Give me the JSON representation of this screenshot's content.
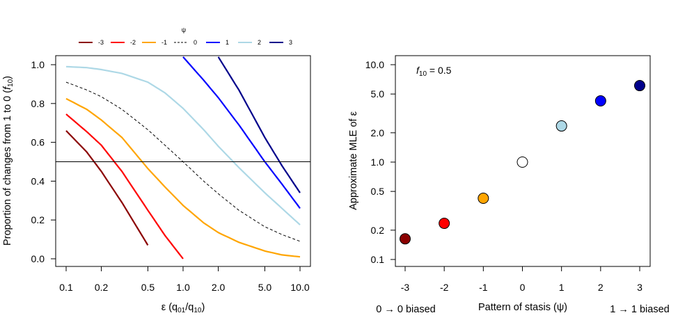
{
  "chart_data": [
    {
      "type": "line",
      "xlabel": "ε (q01/q10)",
      "ylabel": "Proportion of changes from 1 to 0 (f10)",
      "xscale": "log",
      "xlim": [
        0.1,
        10.0
      ],
      "ylim": [
        0.0,
        1.0
      ],
      "x_ticks": [
        0.1,
        0.2,
        0.5,
        1.0,
        2.0,
        5.0,
        10.0
      ],
      "x_tick_labels": [
        "0.1",
        "0.2",
        "0.5",
        "1.0",
        "2.0",
        "5.0",
        "10.0"
      ],
      "y_ticks": [
        0.0,
        0.2,
        0.4,
        0.6,
        0.8,
        1.0
      ],
      "y_tick_labels": [
        "0.0",
        "0.2",
        "0.4",
        "0.6",
        "0.8",
        "1.0"
      ],
      "grid": false,
      "legend_title": "ψ",
      "legend_position": "top",
      "reference_line": {
        "y": 0.5,
        "color": "#000000"
      },
      "x": [
        0.1,
        0.15,
        0.2,
        0.3,
        0.5,
        0.7,
        1.0,
        1.5,
        2.0,
        3.0,
        5.0,
        7.0,
        10.0
      ],
      "series": [
        {
          "name": "-3",
          "color": "#8B0000",
          "dash": "solid",
          "values": [
            0.66,
            0.55,
            0.45,
            0.29,
            0.07,
            null,
            null,
            null,
            null,
            null,
            null,
            null,
            null
          ]
        },
        {
          "name": "-2",
          "color": "#FF0000",
          "dash": "solid",
          "values": [
            0.745,
            0.655,
            0.585,
            0.45,
            0.25,
            0.12,
            0.0,
            null,
            null,
            null,
            null,
            null,
            null
          ]
        },
        {
          "name": "-1",
          "color": "#FFA500",
          "dash": "solid",
          "values": [
            0.825,
            0.77,
            0.715,
            0.625,
            0.465,
            0.37,
            0.275,
            0.185,
            0.135,
            0.085,
            0.04,
            0.02,
            0.01
          ]
        },
        {
          "name": "0",
          "color": "#000000",
          "dash": "dashed",
          "values": [
            0.91,
            0.87,
            0.835,
            0.77,
            0.665,
            0.585,
            0.5,
            0.4,
            0.335,
            0.25,
            0.165,
            0.125,
            0.09
          ]
        },
        {
          "name": "1",
          "color": "#0000FF",
          "dash": "solid",
          "values": [
            null,
            null,
            null,
            null,
            null,
            null,
            1.04,
            0.92,
            0.83,
            0.69,
            0.5,
            0.385,
            0.26
          ]
        },
        {
          "name": "2",
          "color": "#ADD8E6",
          "dash": "solid",
          "values": [
            0.99,
            0.985,
            0.975,
            0.955,
            0.91,
            0.855,
            0.775,
            0.665,
            0.58,
            0.47,
            0.34,
            0.26,
            0.175
          ]
        },
        {
          "name": "3",
          "color": "#00008B",
          "dash": "solid",
          "values": [
            null,
            null,
            null,
            null,
            null,
            null,
            null,
            null,
            1.04,
            0.87,
            0.625,
            0.48,
            0.34
          ]
        }
      ]
    },
    {
      "type": "scatter",
      "xlabel": "Pattern of stasis (ψ)",
      "ylabel": "Approximate MLE of ε",
      "yscale": "log",
      "xlim": [
        -3.25,
        3.25
      ],
      "ylim": [
        0.09,
        11.0
      ],
      "x_ticks": [
        -3,
        -2,
        -1,
        0,
        1,
        2,
        3
      ],
      "x_tick_labels": [
        "-3",
        "-2",
        "-1",
        "0",
        "1",
        "2",
        "3"
      ],
      "y_ticks": [
        0.1,
        0.2,
        0.5,
        1.0,
        2.0,
        5.0,
        10.0
      ],
      "y_tick_labels": [
        "0.1",
        "0.2",
        "0.5",
        "1.0",
        "2.0",
        "5.0",
        "10.0"
      ],
      "grid": false,
      "annotation": "f10 = 0.5",
      "left_note": "0 → 0 biased",
      "right_note": "1 → 1 biased",
      "points": [
        {
          "x": -3,
          "y": 0.163,
          "color": "#8B0000"
        },
        {
          "x": -2,
          "y": 0.235,
          "color": "#FF0000"
        },
        {
          "x": -1,
          "y": 0.425,
          "color": "#FFA500"
        },
        {
          "x": 0,
          "y": 1.0,
          "color": "#FFFFFF"
        },
        {
          "x": 1,
          "y": 2.35,
          "color": "#ADD8E6"
        },
        {
          "x": 2,
          "y": 4.25,
          "color": "#0000FF"
        },
        {
          "x": 3,
          "y": 6.1,
          "color": "#00008B"
        }
      ]
    }
  ]
}
